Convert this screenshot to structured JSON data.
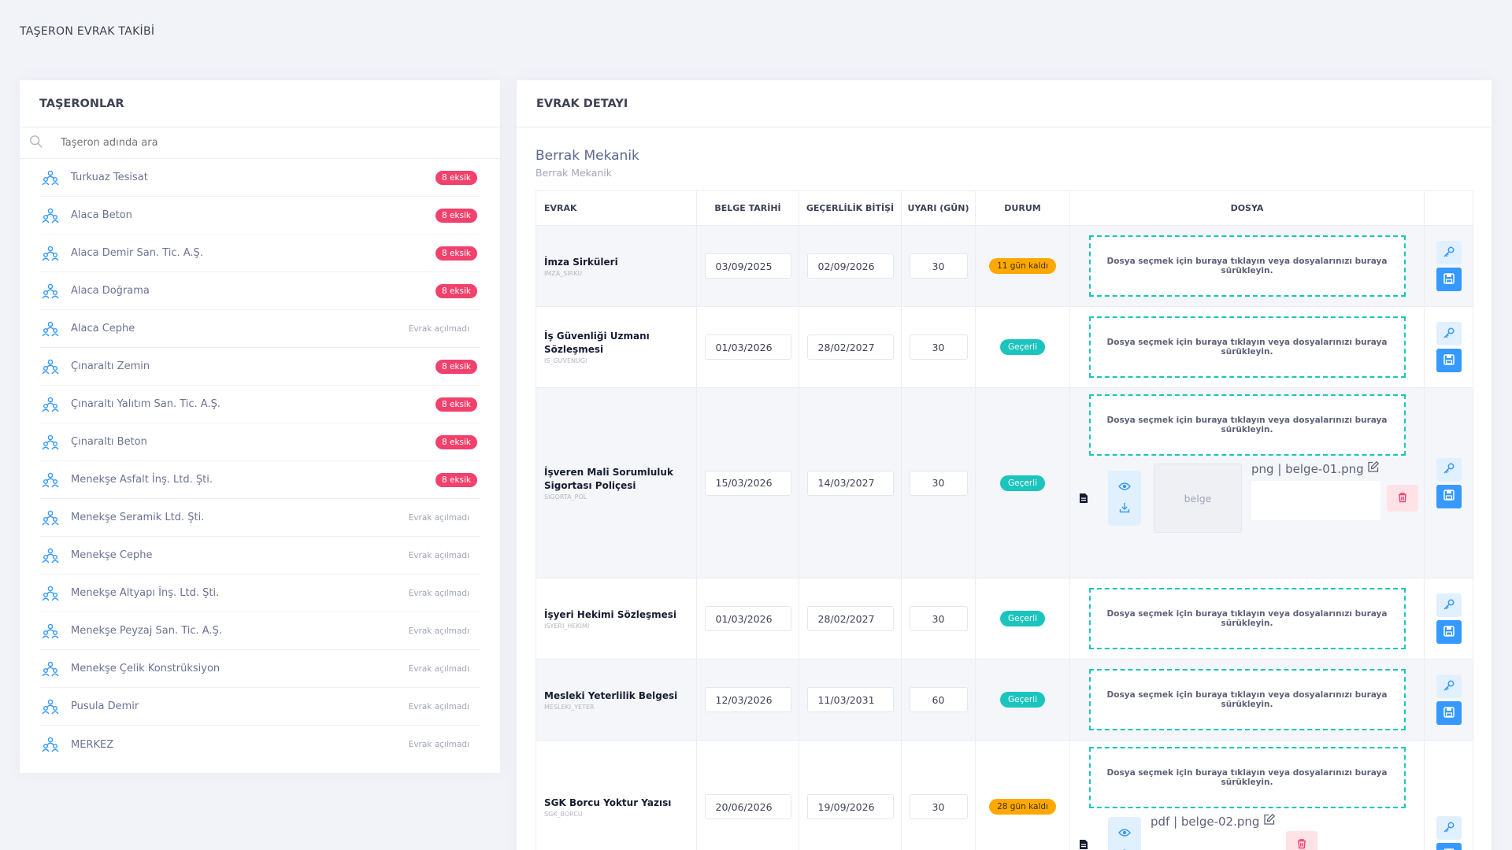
{
  "page_title": "TAŞERON EVRAK TAKİBİ",
  "left": {
    "title": "TAŞERONLAR",
    "search_placeholder": "Taşeron adında ara",
    "items": [
      {
        "name": "Turkuaz Tesisat",
        "status": "8 eksik",
        "missing": true
      },
      {
        "name": "Alaca Beton",
        "status": "8 eksik",
        "missing": true
      },
      {
        "name": "Alaca Demir San. Tic. A.Ş.",
        "status": "8 eksik",
        "missing": true
      },
      {
        "name": "Alaca Doğrama",
        "status": "8 eksik",
        "missing": true
      },
      {
        "name": "Alaca Cephe",
        "status": "Evrak açılmadı",
        "missing": false
      },
      {
        "name": "Çınaraltı Zemin",
        "status": "8 eksik",
        "missing": true
      },
      {
        "name": "Çınaraltı Yalıtım San. Tic. A.Ş.",
        "status": "8 eksik",
        "missing": true
      },
      {
        "name": "Çınaraltı Beton",
        "status": "8 eksik",
        "missing": true
      },
      {
        "name": "Menekşe Asfalt İnş. Ltd. Şti.",
        "status": "8 eksik",
        "missing": true
      },
      {
        "name": "Menekşe Seramik Ltd. Şti.",
        "status": "Evrak açılmadı",
        "missing": false
      },
      {
        "name": "Menekşe Cephe",
        "status": "Evrak açılmadı",
        "missing": false
      },
      {
        "name": "Menekşe Altyapı İnş. Ltd. Şti.",
        "status": "Evrak açılmadı",
        "missing": false
      },
      {
        "name": "Menekşe Peyzaj San. Tic. A.Ş.",
        "status": "Evrak açılmadı",
        "missing": false
      },
      {
        "name": "Menekşe Çelik Konstrüksiyon",
        "status": "Evrak açılmadı",
        "missing": false
      },
      {
        "name": "Pusula Demir",
        "status": "Evrak açılmadı",
        "missing": false
      },
      {
        "name": "MERKEZ",
        "status": "Evrak açılmadı",
        "missing": false
      }
    ]
  },
  "right": {
    "title": "EVRAK DETAYI",
    "company_name": "Berrak Mekanik",
    "company_sub": "Berrak Mekanik",
    "columns": {
      "evrak": "EVRAK",
      "belge_tarihi": "BELGE TARİHİ",
      "gecerlilik": "GEÇERLİLİK BİTİŞİ",
      "uyari": "UYARI (GÜN)",
      "durum": "DURUM",
      "dosya": "DOSYA"
    },
    "drop_text": "Dosya seçmek için buraya tıklayın veya dosyalarınızı buraya sürükleyin.",
    "docs": [
      {
        "name": "İmza Sirküleri",
        "code": "IMZA_SIRKU",
        "date": "03/09/2025",
        "expiry": "02/09/2026",
        "warn": "30",
        "status": "11 gün kaldı",
        "status_type": "warn"
      },
      {
        "name": "İş Güvenliği Uzmanı Sözleşmesi",
        "code": "IS_GUVENUGI",
        "date": "01/03/2026",
        "expiry": "28/02/2027",
        "warn": "30",
        "status": "Geçerli",
        "status_type": "ok"
      },
      {
        "name": "İşveren Mali Sorumluluk Sigortası Poliçesi",
        "code": "SIGORTA_POL",
        "date": "15/03/2026",
        "expiry": "14/03/2027",
        "warn": "30",
        "status": "Geçerli",
        "status_type": "ok",
        "file": {
          "label": "png | belge-01.png",
          "thumb": "belge"
        }
      },
      {
        "name": "İşyeri Hekimi Sözleşmesi",
        "code": "ISYERI_HEKIMI",
        "date": "01/03/2026",
        "expiry": "28/02/2027",
        "warn": "30",
        "status": "Geçerli",
        "status_type": "ok"
      },
      {
        "name": "Mesleki Yeterlilik Belgesi",
        "code": "MESLEKI_YETER",
        "date": "12/03/2026",
        "expiry": "11/03/2031",
        "warn": "60",
        "status": "Geçerli",
        "status_type": "ok"
      },
      {
        "name": "SGK Borcu Yoktur Yazısı",
        "code": "SGK_BORCU",
        "date": "20/06/2026",
        "expiry": "19/09/2026",
        "warn": "30",
        "status": "28 gün kaldı",
        "status_type": "warn",
        "file": {
          "label": "pdf | belge-02.png"
        }
      }
    ]
  },
  "colors": {
    "accent": "#3699ff",
    "missing": "#f1416c",
    "ok": "#1bc5bd",
    "warn": "#ffa800"
  }
}
